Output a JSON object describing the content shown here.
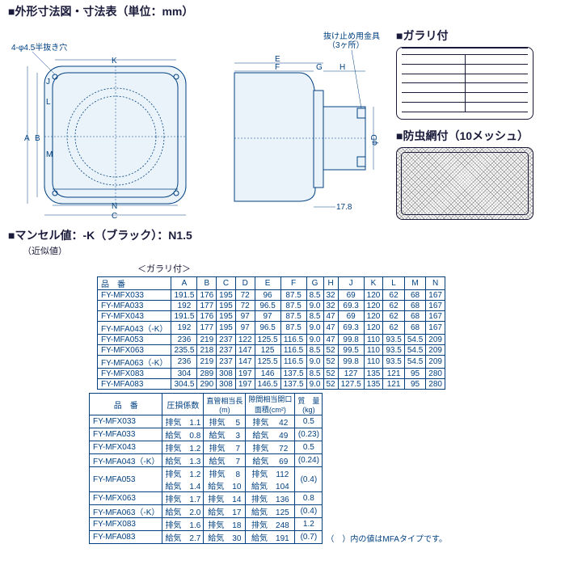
{
  "heading": "■外形寸法図・寸法表（単位：mm）",
  "front": {
    "holes": "4-φ4.5半抜き穴",
    "K": "K",
    "A": "A",
    "B": "B",
    "C": "C",
    "J": "J",
    "L": "L",
    "M": "M",
    "N": "N"
  },
  "side": {
    "clamp": "抜け止め用金具",
    "clamp_qty": "（3ヶ所）",
    "E": "E",
    "F": "F",
    "G": "G",
    "H": "H",
    "D": "φD",
    "t": "17.8"
  },
  "right": {
    "louver_title": "■ガラリ付",
    "mesh_title": "■防虫網付（10メッシュ）"
  },
  "munsell": {
    "label": "■マンセル値：",
    "value": "-K（ブラック）：N1.5",
    "approx": "（近似値）"
  },
  "table1": {
    "caption": "＜ガラリ付＞",
    "cols": [
      "品　番",
      "A",
      "B",
      "C",
      "D",
      "E",
      "F",
      "G",
      "H",
      "J",
      "K",
      "L",
      "M",
      "N"
    ],
    "rows": [
      [
        "FY-MFX033",
        "191.5",
        "176",
        "195",
        "72",
        "96",
        "87.5",
        "8.5",
        "32",
        "69",
        "120",
        "62",
        "68",
        "167"
      ],
      [
        "FY-MFA033",
        "192",
        "177",
        "195",
        "72",
        "96.5",
        "87.5",
        "9.0",
        "32",
        "69.3",
        "120",
        "62",
        "68",
        "167"
      ],
      [
        "FY-MFX043",
        "191.5",
        "176",
        "195",
        "97",
        "97",
        "87.5",
        "8.5",
        "47",
        "69",
        "120",
        "62",
        "68",
        "167"
      ],
      [
        "FY-MFA043（-K）",
        "192",
        "177",
        "195",
        "97",
        "96.5",
        "87.5",
        "9.0",
        "47",
        "69.3",
        "120",
        "62",
        "68",
        "167"
      ],
      [
        "FY-MFA053",
        "236",
        "219",
        "237",
        "122",
        "125.5",
        "116.5",
        "9.0",
        "47",
        "99.8",
        "110",
        "93.5",
        "54.5",
        "209"
      ],
      [
        "FY-MFX063",
        "235.5",
        "218",
        "237",
        "147",
        "125",
        "116.5",
        "8.5",
        "52",
        "99.5",
        "110",
        "93.5",
        "54.5",
        "209"
      ],
      [
        "FY-MFA063（-K）",
        "236",
        "219",
        "237",
        "147",
        "125.5",
        "116.5",
        "9.0",
        "52",
        "99.8",
        "110",
        "93.5",
        "54.5",
        "209"
      ],
      [
        "FY-MFX083",
        "304",
        "289",
        "308",
        "197",
        "146",
        "137.5",
        "8.5",
        "52",
        "127",
        "135",
        "121",
        "95",
        "280"
      ],
      [
        "FY-MFA083",
        "304.5",
        "290",
        "308",
        "197",
        "146.5",
        "137.5",
        "9.0",
        "52",
        "127.5",
        "135",
        "121",
        "95",
        "280"
      ]
    ]
  },
  "table2": {
    "cols": [
      "品　番",
      "圧損係数",
      "直管相当長\n(m)",
      "隙間相当開口\n面積(cm²)",
      "質　量\n(kg)"
    ],
    "rows": [
      [
        "FY-MFX033",
        "排気　1.1",
        "排気　 5",
        "排気　 42",
        "0.5"
      ],
      [
        "FY-MFA033",
        "給気　0.8",
        "給気　 3",
        "給気　 49",
        "(0.23)"
      ],
      [
        "FY-MFX043",
        "排気　1.2",
        "排気　 7",
        "排気　 72",
        "0.5"
      ],
      [
        "FY-MFA043（-K）",
        "給気　1.3",
        "給気　 7",
        "給気　 69",
        "(0.24)"
      ],
      [
        "FY-MFA053",
        "排気　1.2\n給気　1.4",
        "排気　 8\n給気　10",
        "排気　112\n給気　104",
        "(0.4)"
      ],
      [
        "FY-MFX063",
        "排気　1.7",
        "排気　14",
        "排気　136",
        "0.8"
      ],
      [
        "FY-MFA063（-K）",
        "給気　2.0",
        "給気　17",
        "給気　125",
        "(0.4)"
      ],
      [
        "FY-MFX083",
        "排気　1.6",
        "排気　18",
        "排気　248",
        "1.2"
      ],
      [
        "FY-MFA083",
        "給気　2.7",
        "給気　30",
        "給気　191",
        "(0.7)"
      ]
    ],
    "note": "（　）内の値はMFAタイプです。"
  }
}
